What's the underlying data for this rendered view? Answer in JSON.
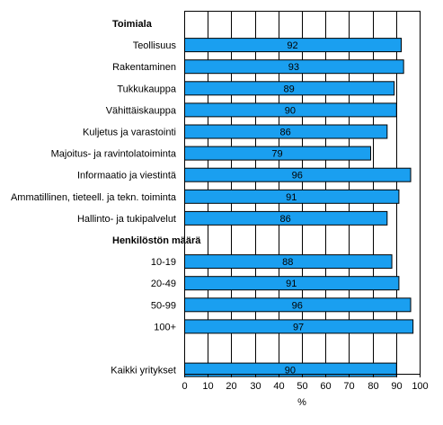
{
  "chart_data": {
    "type": "bar",
    "orientation": "horizontal",
    "xlabel": "%",
    "xlim": [
      0,
      100
    ],
    "xticks": [
      0,
      10,
      20,
      30,
      40,
      50,
      60,
      70,
      80,
      90,
      100
    ],
    "grid": "vertical",
    "bar_color": "#1a9ff0",
    "rows": [
      {
        "kind": "group",
        "label": "Toimiala"
      },
      {
        "kind": "bar",
        "label": "Teollisuus",
        "value": 92
      },
      {
        "kind": "bar",
        "label": "Rakentaminen",
        "value": 93
      },
      {
        "kind": "bar",
        "label": "Tukkukauppa",
        "value": 89
      },
      {
        "kind": "bar",
        "label": "Vähittäiskauppa",
        "value": 90
      },
      {
        "kind": "bar",
        "label": "Kuljetus ja varastointi",
        "value": 86
      },
      {
        "kind": "bar",
        "label": "Majoitus- ja ravintolatoiminta",
        "value": 79
      },
      {
        "kind": "bar",
        "label": "Informaatio ja viestintä",
        "value": 96
      },
      {
        "kind": "bar",
        "label": "Ammatillinen, tieteell. ja tekn. toiminta",
        "value": 91
      },
      {
        "kind": "bar",
        "label": "Hallinto- ja tukipalvelut",
        "value": 86
      },
      {
        "kind": "group",
        "label": "Henkilöstön määrä"
      },
      {
        "kind": "bar",
        "label": "10-19",
        "value": 88
      },
      {
        "kind": "bar",
        "label": "20-49",
        "value": 91
      },
      {
        "kind": "bar",
        "label": "50-99",
        "value": 96
      },
      {
        "kind": "bar",
        "label": "100+",
        "value": 97
      },
      {
        "kind": "blank",
        "label": ""
      },
      {
        "kind": "bar",
        "label": "Kaikki yritykset",
        "value": 90
      }
    ]
  }
}
